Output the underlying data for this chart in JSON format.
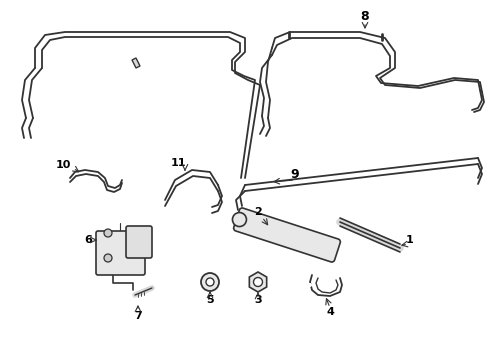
{
  "background_color": "#ffffff",
  "line_color": "#333333",
  "fig_width": 4.89,
  "fig_height": 3.6,
  "dpi": 100,
  "lw": 1.3
}
